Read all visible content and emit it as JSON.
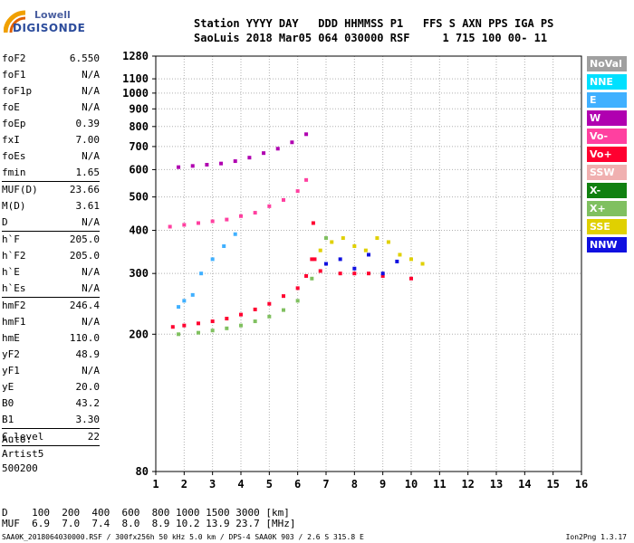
{
  "logo": {
    "line1": "Lowell",
    "line2": "DIGISONDE"
  },
  "header": {
    "line1": "Station YYYY DAY   DDD HHMMSS P1   FFS S AXN PPS IGA PS",
    "line2": "SaoLuis 2018 Mar05 064 030000 RSF     1 715 100 00- 11"
  },
  "params": [
    {
      "name": "foF2",
      "value": "6.550"
    },
    {
      "name": "foF1",
      "value": "N/A"
    },
    {
      "name": "foF1p",
      "value": "N/A"
    },
    {
      "name": "foE",
      "value": "N/A"
    },
    {
      "name": "foEp",
      "value": "0.39"
    },
    {
      "name": "fxI",
      "value": "7.00"
    },
    {
      "name": "foEs",
      "value": "N/A"
    },
    {
      "name": "fmin",
      "value": "1.65",
      "sep": true
    },
    {
      "name": "MUF(D)",
      "value": "23.66"
    },
    {
      "name": "M(D)",
      "value": "3.61"
    },
    {
      "name": "D",
      "value": "N/A",
      "sep": true
    },
    {
      "name": "h`F",
      "value": "205.0"
    },
    {
      "name": "h`F2",
      "value": "205.0"
    },
    {
      "name": "h`E",
      "value": "N/A"
    },
    {
      "name": "h`Es",
      "value": "N/A",
      "sep": true
    },
    {
      "name": "hmF2",
      "value": "246.4"
    },
    {
      "name": "hmF1",
      "value": "N/A"
    },
    {
      "name": "hmE",
      "value": "110.0"
    },
    {
      "name": "yF2",
      "value": "48.9"
    },
    {
      "name": "yF1",
      "value": "N/A"
    },
    {
      "name": "yE",
      "value": "20.0"
    },
    {
      "name": "B0",
      "value": "43.2"
    },
    {
      "name": "B1",
      "value": "3.30",
      "sep": true
    },
    {
      "name": "C-level",
      "value": "22",
      "sep": true
    }
  ],
  "auto": {
    "line1": "Auto:",
    "line2": "Artist5",
    "line3": "500200"
  },
  "legend": [
    {
      "label": "NoVal",
      "color": "#a0a0a0"
    },
    {
      "label": "NNE",
      "color": "#00e0ff"
    },
    {
      "label": "E",
      "color": "#40b0ff"
    },
    {
      "label": "W",
      "color": "#b000b0"
    },
    {
      "label": "Vo-",
      "color": "#ff40a0"
    },
    {
      "label": "Vo+",
      "color": "#ff0030"
    },
    {
      "label": "SSW",
      "color": "#f0b0b0"
    },
    {
      "label": "X-",
      "color": "#108010"
    },
    {
      "label": "X+",
      "color": "#80c060"
    },
    {
      "label": "SSE",
      "color": "#e0d000"
    },
    {
      "label": "NNW",
      "color": "#1010e0"
    }
  ],
  "footer": {
    "line1": "D    100  200  400  600  800 1000 1500 3000 [km]",
    "line2": "MUF  6.9  7.0  7.4  8.0  8.9 10.2 13.9 23.7 [MHz]",
    "line3": "SAA0K_2018064030000.RSF / 300fx256h 50 kHz 5.0 km / DPS-4 SAA0K 903 / 2.6 S 315.8 E",
    "version": "Ion2Png 1.3.17"
  },
  "chart_data": {
    "type": "scatter",
    "title": "",
    "xlabel": "",
    "ylabel": "",
    "xlim": [
      1,
      16
    ],
    "xticks": [
      1,
      2,
      3,
      4,
      5,
      6,
      7,
      8,
      9,
      10,
      11,
      12,
      13,
      14,
      15,
      16
    ],
    "ylim": [
      80,
      1280
    ],
    "yticks": [
      80,
      200,
      300,
      400,
      500,
      600,
      700,
      800,
      900,
      1000,
      1100,
      1280
    ],
    "yscale": "log",
    "grid": true,
    "series": [
      {
        "name": "Vo+",
        "color": "#ff0030",
        "x": [
          1.6,
          2.0,
          2.5,
          3.0,
          3.5,
          4.0,
          4.5,
          5.0,
          5.5,
          6.0,
          6.3,
          6.5,
          6.55,
          6.6,
          6.8,
          7.5,
          8.0,
          8.5,
          9.0,
          10.0
        ],
        "y": [
          210,
          212,
          215,
          218,
          222,
          228,
          236,
          245,
          258,
          272,
          295,
          330,
          420,
          330,
          305,
          300,
          300,
          300,
          295,
          290
        ]
      },
      {
        "name": "X+",
        "color": "#80c060",
        "x": [
          1.8,
          2.5,
          3.0,
          3.5,
          4.0,
          4.5,
          5.0,
          5.5,
          6.0,
          6.5,
          7.0
        ],
        "y": [
          200,
          202,
          205,
          208,
          212,
          218,
          225,
          235,
          250,
          290,
          380
        ]
      },
      {
        "name": "SSE",
        "color": "#e0d000",
        "x": [
          6.8,
          7.2,
          7.6,
          8.0,
          8.4,
          8.8,
          9.2,
          9.6,
          10.0,
          10.4
        ],
        "y": [
          350,
          370,
          380,
          360,
          350,
          380,
          370,
          340,
          330,
          320
        ]
      },
      {
        "name": "NNW",
        "color": "#1010e0",
        "x": [
          7.0,
          7.5,
          8.0,
          8.5,
          9.0,
          9.5
        ],
        "y": [
          320,
          330,
          310,
          340,
          300,
          325
        ]
      },
      {
        "name": "E",
        "color": "#40b0ff",
        "x": [
          1.8,
          2.0,
          2.3,
          2.6,
          3.0,
          3.4,
          3.8
        ],
        "y": [
          240,
          250,
          260,
          300,
          330,
          360,
          390
        ]
      },
      {
        "name": "Vo-",
        "color": "#ff40a0",
        "x": [
          1.5,
          2.0,
          2.5,
          3.0,
          3.5,
          4.0,
          4.5,
          5.0,
          5.5,
          6.0,
          6.3
        ],
        "y": [
          410,
          415,
          420,
          425,
          430,
          440,
          450,
          470,
          490,
          520,
          560
        ]
      },
      {
        "name": "W",
        "color": "#b000b0",
        "x": [
          1.8,
          2.3,
          2.8,
          3.3,
          3.8,
          4.3,
          4.8,
          5.3,
          5.8,
          6.3
        ],
        "y": [
          610,
          615,
          620,
          625,
          635,
          650,
          670,
          690,
          720,
          760
        ]
      }
    ]
  }
}
